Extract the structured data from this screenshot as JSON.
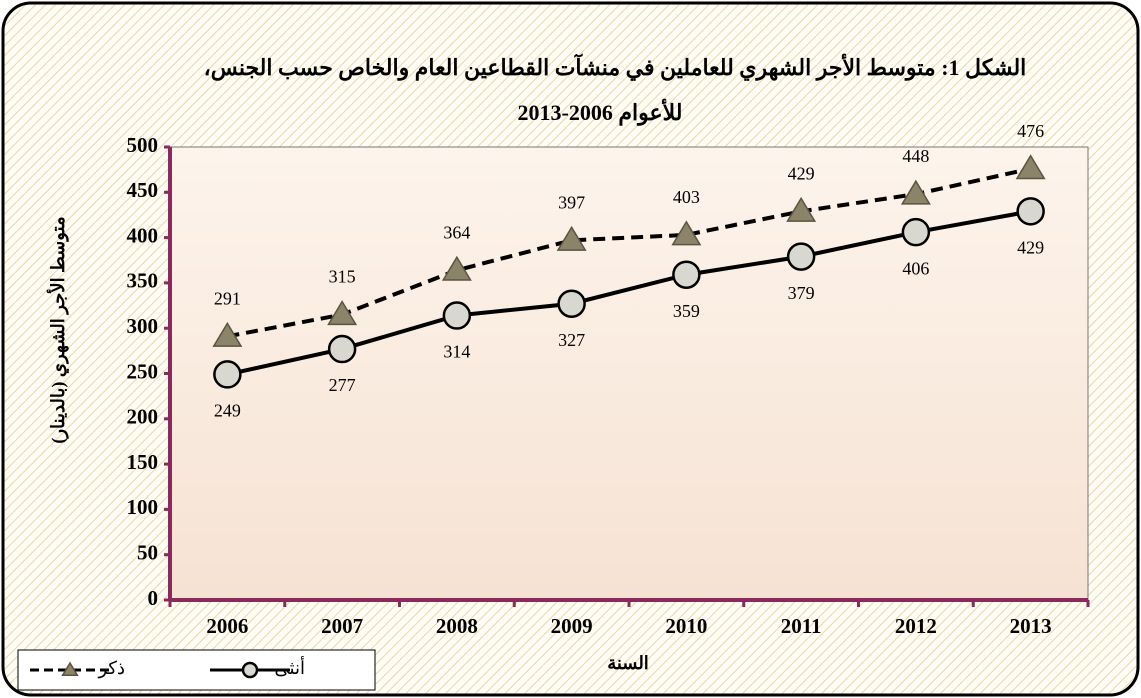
{
  "chart_data": {
    "type": "line",
    "title": "الشكل 1: متوسط الأجر الشهري للعاملين في منشآت القطاعين العام والخاص حسب الجنس،",
    "subtitle": "للأعوام 2006-2013",
    "x_label": "السنة",
    "y_label": "متوسط الأجر الشهري (بالدينار)",
    "categories": [
      "2006",
      "2007",
      "2008",
      "2009",
      "2010",
      "2011",
      "2012",
      "2013"
    ],
    "series": [
      {
        "name": "ذكر",
        "color": "#8b8468",
        "values": [
          291,
          315,
          364,
          397,
          403,
          429,
          448,
          476
        ]
      },
      {
        "name": "أنثى",
        "color": "#d8d8d0",
        "values": [
          249,
          277,
          314,
          327,
          359,
          379,
          406,
          429
        ]
      }
    ],
    "ylim": [
      0,
      500
    ],
    "yticks": [
      0,
      50,
      100,
      150,
      200,
      250,
      300,
      350,
      400,
      450,
      500
    ],
    "legend": "bottom-left"
  }
}
